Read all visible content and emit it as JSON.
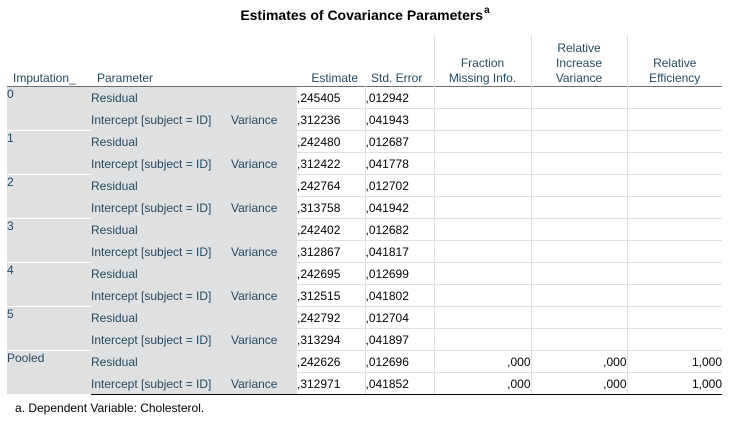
{
  "title": "Estimates of Covariance Parameters",
  "title_footnote_marker": "a",
  "columns": {
    "imputation": "Imputation_",
    "parameter": "Parameter",
    "estimate": "Estimate",
    "std_error": "Std. Error",
    "fraction_missing": [
      "Fraction",
      "Missing Info."
    ],
    "relative_increase": [
      "Relative",
      "Increase",
      "Variance"
    ],
    "relative_efficiency": [
      "Relative",
      "Efficiency"
    ]
  },
  "groups": [
    {
      "imputation": "0",
      "rows": [
        {
          "parameter": "Residual",
          "variance": "",
          "estimate": ",245405",
          "std_error": ",012942",
          "fmi": "",
          "riv": "",
          "re": ""
        },
        {
          "parameter": "Intercept [subject = ID]",
          "variance": "Variance",
          "estimate": ",312236",
          "std_error": ",041943",
          "fmi": "",
          "riv": "",
          "re": ""
        }
      ]
    },
    {
      "imputation": "1",
      "rows": [
        {
          "parameter": "Residual",
          "variance": "",
          "estimate": ",242480",
          "std_error": ",012687",
          "fmi": "",
          "riv": "",
          "re": ""
        },
        {
          "parameter": "Intercept [subject = ID]",
          "variance": "Variance",
          "estimate": ",312422",
          "std_error": ",041778",
          "fmi": "",
          "riv": "",
          "re": ""
        }
      ]
    },
    {
      "imputation": "2",
      "rows": [
        {
          "parameter": "Residual",
          "variance": "",
          "estimate": ",242764",
          "std_error": ",012702",
          "fmi": "",
          "riv": "",
          "re": ""
        },
        {
          "parameter": "Intercept [subject = ID]",
          "variance": "Variance",
          "estimate": ",313758",
          "std_error": ",041942",
          "fmi": "",
          "riv": "",
          "re": ""
        }
      ]
    },
    {
      "imputation": "3",
      "rows": [
        {
          "parameter": "Residual",
          "variance": "",
          "estimate": ",242402",
          "std_error": ",012682",
          "fmi": "",
          "riv": "",
          "re": ""
        },
        {
          "parameter": "Intercept [subject = ID]",
          "variance": "Variance",
          "estimate": ",312867",
          "std_error": ",041817",
          "fmi": "",
          "riv": "",
          "re": ""
        }
      ]
    },
    {
      "imputation": "4",
      "rows": [
        {
          "parameter": "Residual",
          "variance": "",
          "estimate": ",242695",
          "std_error": ",012699",
          "fmi": "",
          "riv": "",
          "re": ""
        },
        {
          "parameter": "Intercept [subject = ID]",
          "variance": "Variance",
          "estimate": ",312515",
          "std_error": ",041802",
          "fmi": "",
          "riv": "",
          "re": ""
        }
      ]
    },
    {
      "imputation": "5",
      "rows": [
        {
          "parameter": "Residual",
          "variance": "",
          "estimate": ",242792",
          "std_error": ",012704",
          "fmi": "",
          "riv": "",
          "re": ""
        },
        {
          "parameter": "Intercept [subject = ID]",
          "variance": "Variance",
          "estimate": ",313294",
          "std_error": ",041897",
          "fmi": "",
          "riv": "",
          "re": ""
        }
      ]
    },
    {
      "imputation": "Pooled",
      "rows": [
        {
          "parameter": "Residual",
          "variance": "",
          "estimate": ",242626",
          "std_error": ",012696",
          "fmi": ",000",
          "riv": ",000",
          "re": "1,000"
        },
        {
          "parameter": "Intercept [subject = ID]",
          "variance": "Variance",
          "estimate": ",312971",
          "std_error": ",041852",
          "fmi": ",000",
          "riv": ",000",
          "re": "1,000"
        }
      ]
    }
  ],
  "footnote": "a. Dependent Variable: Cholesterol."
}
